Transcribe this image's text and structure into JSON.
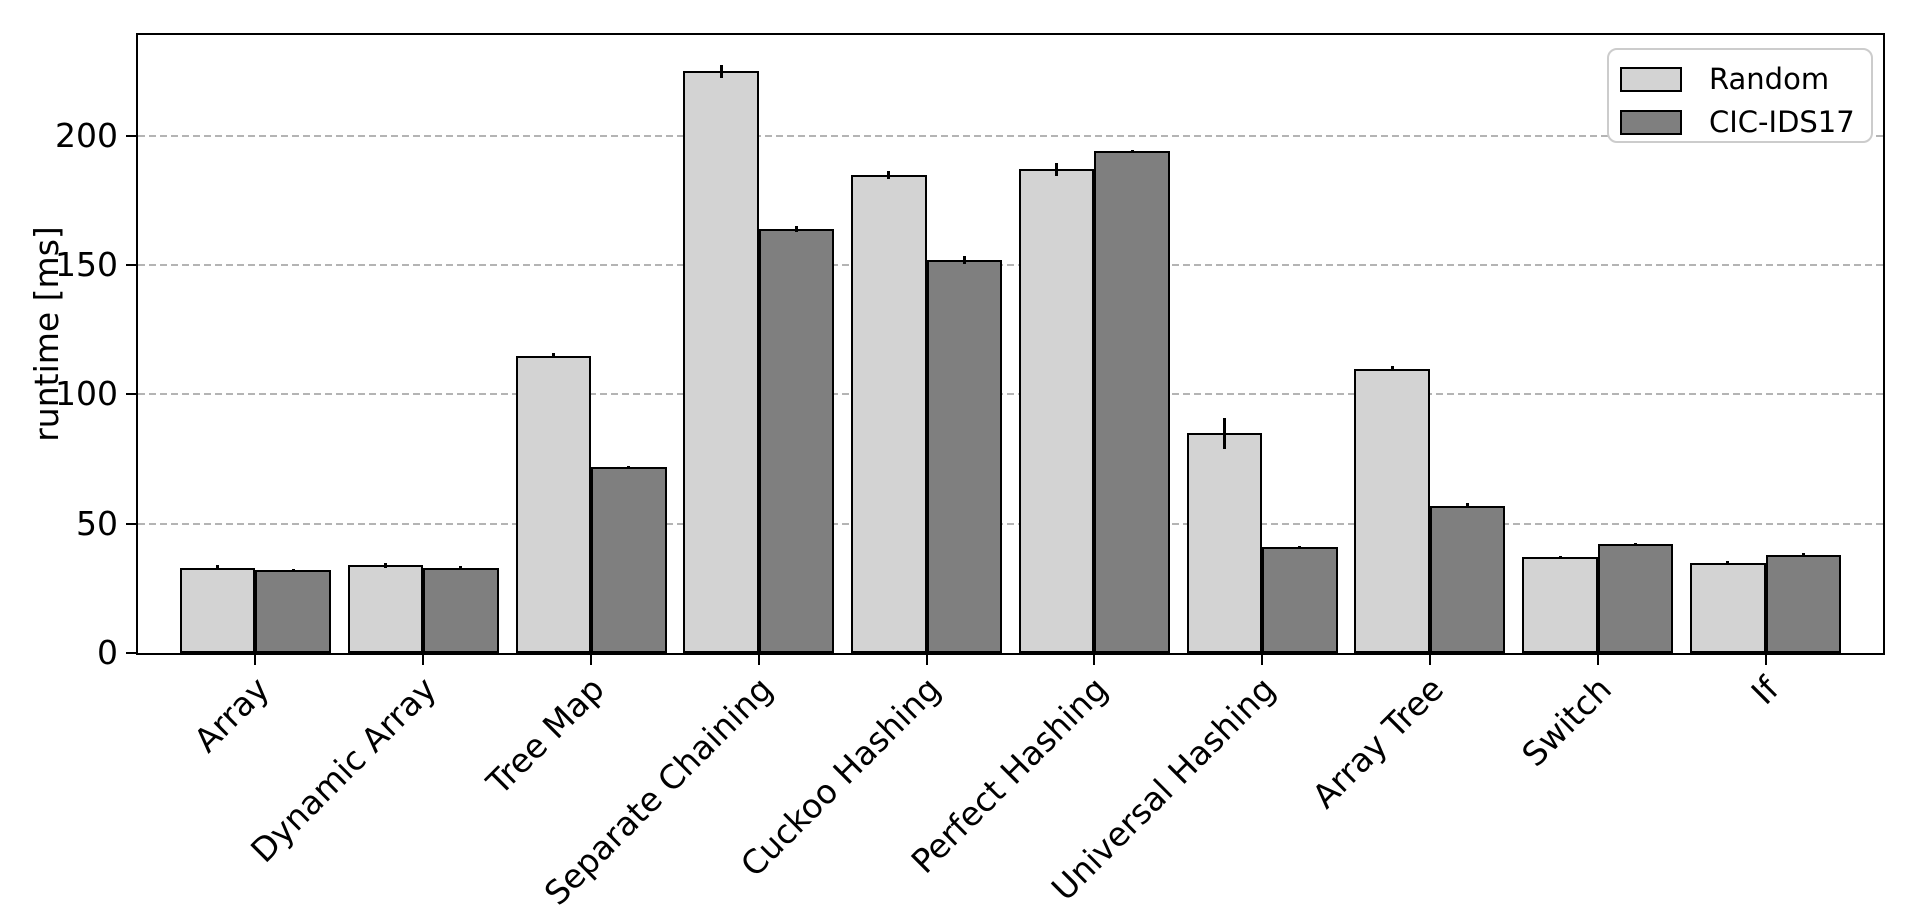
{
  "chart_data": {
    "type": "bar",
    "title": "",
    "xlabel": "",
    "ylabel": "runtime [ms]",
    "ylim": [
      0,
      239
    ],
    "yticks": [
      0,
      50,
      100,
      150,
      200
    ],
    "grid": "horizontal-dashed",
    "grid_color": "#b4b4b4",
    "bar_edge_color": "#000000",
    "legend_position": "upper right",
    "categories": [
      "Array",
      "Dynamic Array",
      "Tree Map",
      "Separate Chaining",
      "Cuckoo Hashing",
      "Perfect Hashing",
      "Universal Hashing",
      "Array Tree",
      "Switch",
      "If"
    ],
    "series": [
      {
        "name": "Random",
        "color": "#d3d3d3",
        "values": [
          33,
          34,
          115,
          225,
          185,
          187,
          85,
          110,
          37,
          35
        ],
        "errors": [
          1,
          1,
          1,
          2.5,
          1.5,
          2.5,
          6,
          1,
          0.5,
          0.5
        ]
      },
      {
        "name": "CIC-IDS17",
        "color": "#7f7f7f",
        "values": [
          32,
          33,
          72,
          164,
          152,
          194,
          41,
          57,
          42,
          38
        ],
        "errors": [
          0.5,
          0.5,
          0.5,
          1,
          1.5,
          0.5,
          0.5,
          1,
          0.5,
          0.5
        ]
      }
    ]
  }
}
